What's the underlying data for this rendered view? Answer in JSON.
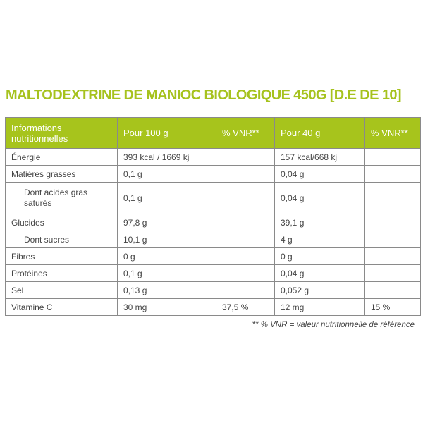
{
  "title": "MALTODEXTRINE DE MANIOC BIOLOGIQUE 450G [D.E DE 10]",
  "colors": {
    "accent": "#a7c41c"
  },
  "headers": [
    "Informations nutritionnelles",
    "Pour 100 g",
    "% VNR**",
    "Pour 40 g",
    "% VNR**"
  ],
  "rows": [
    [
      "Énergie",
      "393 kcal / 1669 kj",
      "",
      "157 kcal/668 kj",
      ""
    ],
    [
      "Matières grasses",
      "0,1 g",
      "",
      "0,04 g",
      ""
    ],
    [
      "Dont acides gras saturés",
      "0,1 g",
      "",
      "0,04 g",
      ""
    ],
    [
      "Glucides",
      "97,8 g",
      "",
      "39,1 g",
      ""
    ],
    [
      "Dont sucres",
      "10,1 g",
      "",
      "4 g",
      ""
    ],
    [
      "Fibres",
      "0 g",
      "",
      "0 g",
      ""
    ],
    [
      "Protéines",
      "0,1 g",
      "",
      "0,04 g",
      ""
    ],
    [
      "Sel",
      "0,13 g",
      "",
      "0,052 g",
      ""
    ],
    [
      "Vitamine C",
      "30 mg",
      "37,5 %",
      "12 mg",
      "15 %"
    ]
  ],
  "footnote": "** % VNR = valeur nutritionnelle de référence"
}
